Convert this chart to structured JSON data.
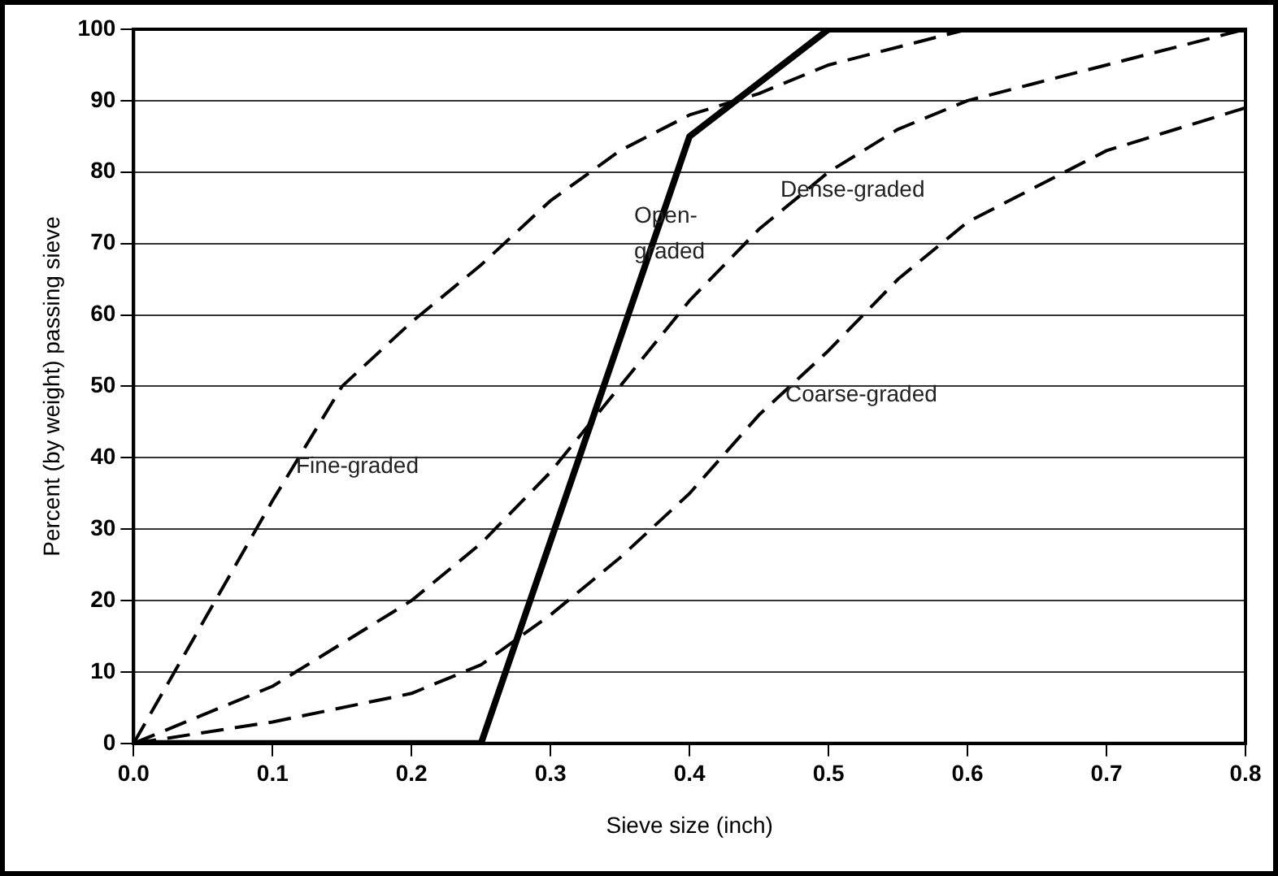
{
  "chart_data": {
    "type": "line",
    "xlabel": "Sieve size (inch)",
    "ylabel": "Percent (by weight) passing sieve",
    "xlim": [
      0,
      0.8
    ],
    "xticks": [
      {
        "value": 0,
        "label": "0.0"
      },
      0.1,
      0.2,
      0.3,
      0.4,
      0.5,
      0.6,
      0.7,
      0.8
    ],
    "ylim": [
      0,
      100
    ],
    "yticks": [
      0,
      10,
      20,
      30,
      40,
      50,
      60,
      70,
      80,
      90,
      100
    ],
    "grid": "y",
    "legend": false,
    "marker": "none",
    "series": [
      {
        "color": "#000000",
        "line_style": "dashed",
        "x": [
          0,
          0.05,
          0.1,
          0.15,
          0.2,
          0.25,
          0.3,
          0.35,
          0.4,
          0.45,
          0.5,
          0.6
        ],
        "values": [
          0,
          17,
          34,
          50,
          59,
          67,
          76,
          83,
          88,
          91,
          95,
          100
        ]
      },
      {
        "color": "#000000",
        "line_style": "dashed",
        "x": [
          0,
          0.05,
          0.1,
          0.15,
          0.2,
          0.25,
          0.3,
          0.35,
          0.4,
          0.45,
          0.5,
          0.55,
          0.6,
          0.7,
          0.8
        ],
        "values": [
          0,
          4,
          8,
          14,
          20,
          28,
          38,
          50,
          62,
          72,
          80,
          86,
          90,
          95,
          100
        ]
      },
      {
        "color": "#000000",
        "line_style": "dashed",
        "x": [
          0,
          0.1,
          0.2,
          0.25,
          0.3,
          0.35,
          0.4,
          0.45,
          0.5,
          0.55,
          0.6,
          0.65,
          0.7,
          0.75,
          0.8
        ],
        "values": [
          0,
          3,
          7,
          11,
          18,
          26,
          35,
          46,
          55,
          65,
          73,
          78,
          83,
          86,
          89
        ]
      },
      {
        "color": "#000000",
        "line_style": "solid",
        "x": [
          0,
          0.25,
          0.4,
          0.5,
          0.8
        ],
        "values": [
          0,
          0,
          85,
          100,
          100
        ]
      }
    ],
    "annotations": [
      "Fine-graded",
      "Open-\ngraded",
      "Dense-graded",
      "Coarse-graded"
    ]
  }
}
